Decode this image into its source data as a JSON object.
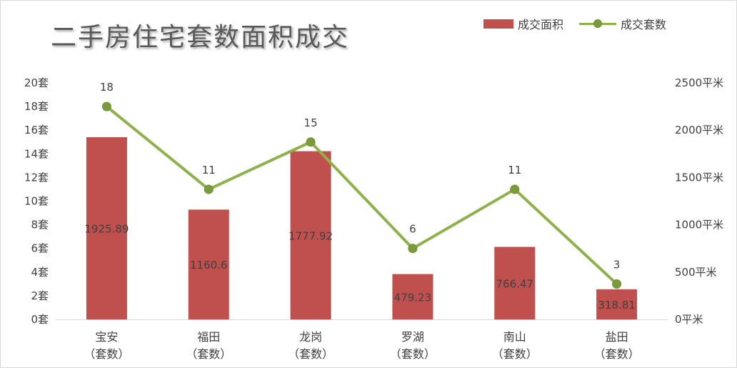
{
  "title": "二手房住宅套数面积成交",
  "legend": {
    "bar_label": "成交面积",
    "line_label": "成交套数"
  },
  "colors": {
    "bar": "#c0504d",
    "line": "#8db14b",
    "marker": "#7a9b3c",
    "axis_text": "#404040",
    "data_label": "#404040"
  },
  "chart_data": {
    "type": "bar+line",
    "title": "二手房住宅套数面积成交",
    "categories": [
      "宝安\n（套数）",
      "福田\n（套数）",
      "龙岗\n（套数）",
      "罗湖\n（套数）",
      "南山\n（套数）",
      "盐田\n（套数）"
    ],
    "series": [
      {
        "name": "成交面积",
        "type": "bar",
        "axis": "right",
        "values": [
          1925.89,
          1160.6,
          1777.92,
          479.23,
          766.47,
          318.81
        ],
        "labels": [
          "1925.89",
          "1160.6",
          "1777.92",
          "479.23",
          "766.47",
          "318.81"
        ]
      },
      {
        "name": "成交套数",
        "type": "line",
        "axis": "left",
        "values": [
          18,
          11,
          15,
          6,
          11,
          3
        ],
        "labels": [
          "18",
          "11",
          "15",
          "6",
          "11",
          "3"
        ]
      }
    ],
    "y_left": {
      "ylim": [
        0,
        20
      ],
      "ticks": [
        0,
        2,
        4,
        6,
        8,
        10,
        12,
        14,
        16,
        18,
        20
      ],
      "tick_labels": [
        "0套",
        "2套",
        "4套",
        "6套",
        "8套",
        "10套",
        "12套",
        "14套",
        "16套",
        "18套",
        "20套"
      ]
    },
    "y_right": {
      "ylim": [
        0,
        2500
      ],
      "ticks": [
        0,
        500,
        1000,
        1500,
        2000,
        2500
      ],
      "tick_labels": [
        "0平米",
        "500平米",
        "1000平米",
        "1500平米",
        "2000平米",
        "2500平米"
      ]
    },
    "grid": false,
    "legend_position": "top-right"
  }
}
